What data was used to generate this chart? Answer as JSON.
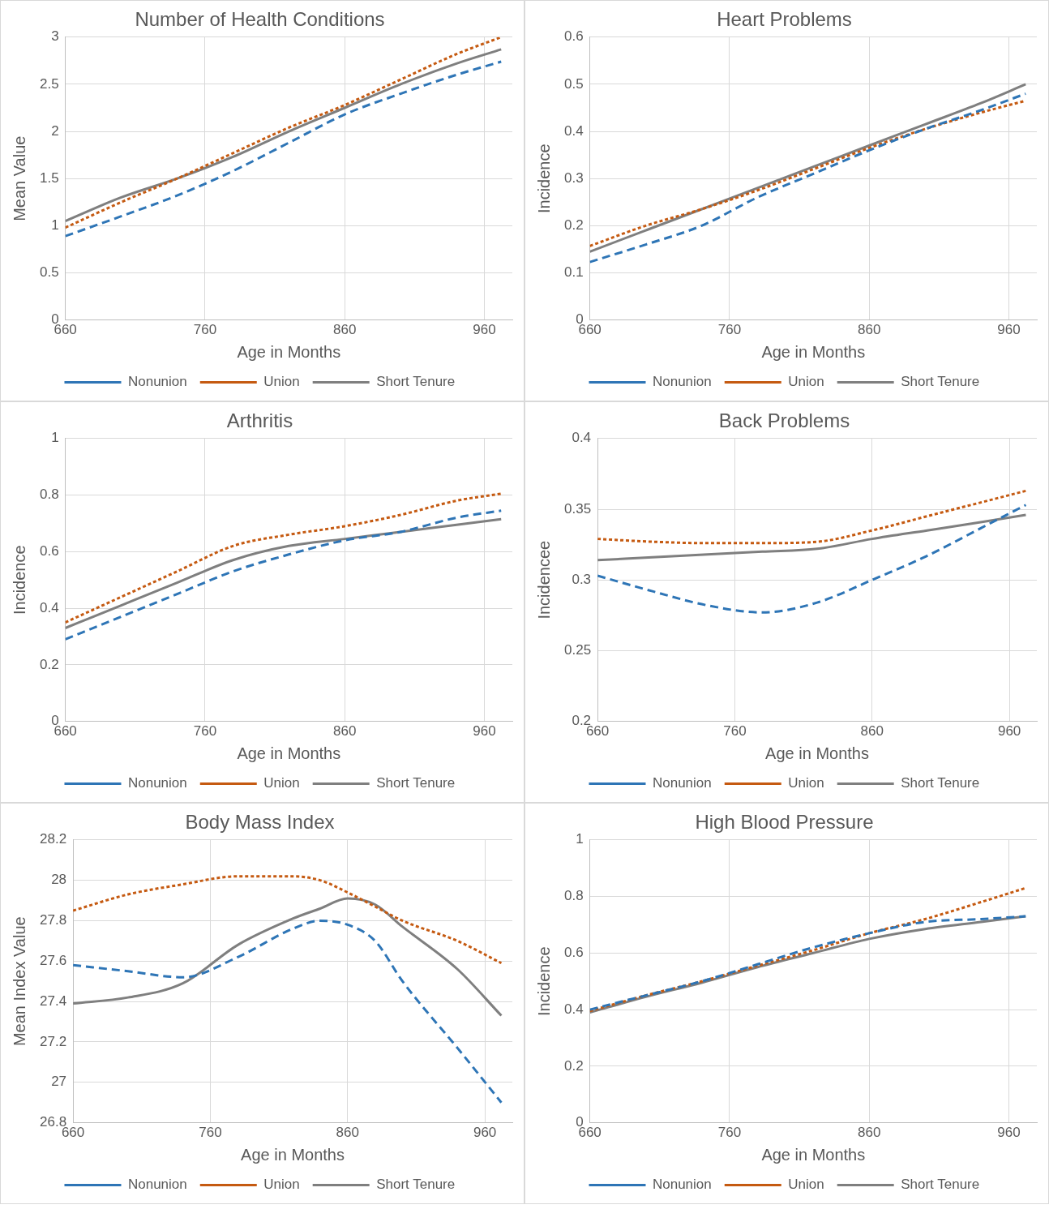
{
  "chart_data": [
    {
      "type": "line",
      "title": "Number of Health Conditions",
      "xlabel": "Age in Months",
      "ylabel": "Mean Value",
      "x": [
        660,
        700,
        740,
        780,
        820,
        860,
        900,
        940,
        972
      ],
      "xlim": [
        660,
        980
      ],
      "xticks": [
        660,
        760,
        860,
        960
      ],
      "ylim": [
        0,
        3
      ],
      "yticks": [
        0,
        0.5,
        1,
        1.5,
        2,
        2.5,
        3
      ],
      "grid": true,
      "legend": "bottom",
      "marker": "none",
      "series": [
        {
          "name": "Nonunion",
          "color": "#2e75b6",
          "line_style": "dashed",
          "values": [
            0.89,
            1.1,
            1.32,
            1.58,
            1.88,
            2.18,
            2.4,
            2.6,
            2.74
          ]
        },
        {
          "name": "Union",
          "color": "#c55a11",
          "line_style": "dotted",
          "values": [
            0.98,
            1.25,
            1.5,
            1.77,
            2.04,
            2.28,
            2.55,
            2.82,
            3.0
          ]
        },
        {
          "name": "Short Tenure",
          "color": "#7f7f7f",
          "line_style": "solid",
          "values": [
            1.05,
            1.3,
            1.5,
            1.73,
            2.0,
            2.25,
            2.5,
            2.72,
            2.87
          ]
        }
      ]
    },
    {
      "type": "line",
      "title": "Heart Problems",
      "xlabel": "Age in Months",
      "ylabel": "Incidence",
      "x": [
        660,
        700,
        740,
        780,
        820,
        860,
        900,
        940,
        972
      ],
      "xlim": [
        660,
        980
      ],
      "xticks": [
        660,
        760,
        860,
        960
      ],
      "ylim": [
        0,
        0.6
      ],
      "yticks": [
        0,
        0.1,
        0.2,
        0.3,
        0.4,
        0.5,
        0.6
      ],
      "grid": true,
      "legend": "bottom",
      "marker": "none",
      "series": [
        {
          "name": "Nonunion",
          "color": "#2e75b6",
          "line_style": "dashed",
          "values": [
            0.123,
            0.16,
            0.2,
            0.26,
            0.31,
            0.36,
            0.405,
            0.445,
            0.48
          ]
        },
        {
          "name": "Union",
          "color": "#c55a11",
          "line_style": "dotted",
          "values": [
            0.157,
            0.2,
            0.235,
            0.275,
            0.32,
            0.365,
            0.405,
            0.44,
            0.465
          ]
        },
        {
          "name": "Short Tenure",
          "color": "#7f7f7f",
          "line_style": "solid",
          "values": [
            0.145,
            0.19,
            0.235,
            0.28,
            0.325,
            0.37,
            0.415,
            0.46,
            0.5
          ]
        }
      ]
    },
    {
      "type": "line",
      "title": "Arthritis",
      "xlabel": "Age in Months",
      "ylabel": "Incidence",
      "x": [
        660,
        700,
        740,
        780,
        820,
        860,
        900,
        940,
        972
      ],
      "xlim": [
        660,
        980
      ],
      "xticks": [
        660,
        760,
        860,
        960
      ],
      "ylim": [
        0,
        1
      ],
      "yticks": [
        0,
        0.2,
        0.4,
        0.6,
        0.8,
        1
      ],
      "grid": true,
      "legend": "bottom",
      "marker": "none",
      "series": [
        {
          "name": "Nonunion",
          "color": "#2e75b6",
          "line_style": "dashed",
          "values": [
            0.29,
            0.37,
            0.45,
            0.53,
            0.59,
            0.64,
            0.67,
            0.72,
            0.745
          ]
        },
        {
          "name": "Union",
          "color": "#c55a11",
          "line_style": "dotted",
          "values": [
            0.35,
            0.44,
            0.53,
            0.62,
            0.66,
            0.69,
            0.73,
            0.78,
            0.805
          ]
        },
        {
          "name": "Short Tenure",
          "color": "#7f7f7f",
          "line_style": "solid",
          "values": [
            0.33,
            0.41,
            0.49,
            0.57,
            0.62,
            0.645,
            0.67,
            0.695,
            0.715
          ]
        }
      ]
    },
    {
      "type": "line",
      "title": "Back Problems",
      "xlabel": "Age in Months",
      "ylabel": "Incidencee",
      "x": [
        660,
        700,
        740,
        780,
        820,
        860,
        900,
        940,
        972
      ],
      "xlim": [
        660,
        980
      ],
      "xticks": [
        660,
        760,
        860,
        960
      ],
      "ylim": [
        0.2,
        0.4
      ],
      "yticks": [
        0.2,
        0.25,
        0.3,
        0.35,
        0.4
      ],
      "grid": true,
      "legend": "bottom",
      "marker": "none",
      "series": [
        {
          "name": "Nonunion",
          "color": "#2e75b6",
          "line_style": "dashed",
          "values": [
            0.303,
            0.292,
            0.282,
            0.277,
            0.284,
            0.3,
            0.317,
            0.337,
            0.353
          ]
        },
        {
          "name": "Union",
          "color": "#c55a11",
          "line_style": "dotted",
          "values": [
            0.329,
            0.327,
            0.326,
            0.326,
            0.327,
            0.335,
            0.345,
            0.355,
            0.363
          ]
        },
        {
          "name": "Short Tenure",
          "color": "#7f7f7f",
          "line_style": "solid",
          "values": [
            0.314,
            0.316,
            0.318,
            0.32,
            0.322,
            0.329,
            0.335,
            0.341,
            0.346
          ]
        }
      ]
    },
    {
      "type": "line",
      "title": "Body Mass Index",
      "xlabel": "Age in Months",
      "ylabel": "Mean Index Value",
      "x": [
        660,
        700,
        740,
        780,
        820,
        840,
        860,
        880,
        900,
        940,
        972
      ],
      "xlim": [
        660,
        980
      ],
      "xticks": [
        660,
        760,
        860,
        960
      ],
      "ylim": [
        26.8,
        28.2
      ],
      "yticks": [
        26.8,
        27,
        27.2,
        27.4,
        27.6,
        27.8,
        28,
        28.2
      ],
      "grid": true,
      "legend": "bottom",
      "marker": "none",
      "series": [
        {
          "name": "Nonunion",
          "color": "#2e75b6",
          "line_style": "dashed",
          "values": [
            27.58,
            27.55,
            27.52,
            27.62,
            27.76,
            27.8,
            27.78,
            27.7,
            27.5,
            27.17,
            26.9
          ]
        },
        {
          "name": "Union",
          "color": "#c55a11",
          "line_style": "dotted",
          "values": [
            27.85,
            27.93,
            27.98,
            28.02,
            28.02,
            28.0,
            27.94,
            27.87,
            27.8,
            27.7,
            27.59
          ]
        },
        {
          "name": "Short Tenure",
          "color": "#7f7f7f",
          "line_style": "solid",
          "values": [
            27.39,
            27.42,
            27.49,
            27.68,
            27.81,
            27.86,
            27.91,
            27.88,
            27.77,
            27.56,
            27.33
          ]
        }
      ]
    },
    {
      "type": "line",
      "title": "High Blood Pressure",
      "xlabel": "Age in Months",
      "ylabel": "Incidence",
      "x": [
        660,
        700,
        740,
        780,
        820,
        860,
        900,
        940,
        972
      ],
      "xlim": [
        660,
        980
      ],
      "xticks": [
        660,
        760,
        860,
        960
      ],
      "ylim": [
        0,
        1
      ],
      "yticks": [
        0,
        0.2,
        0.4,
        0.6,
        0.8,
        1
      ],
      "grid": true,
      "legend": "bottom",
      "marker": "none",
      "series": [
        {
          "name": "Nonunion",
          "color": "#2e75b6",
          "line_style": "dashed",
          "values": [
            0.4,
            0.45,
            0.5,
            0.56,
            0.62,
            0.67,
            0.71,
            0.72,
            0.73
          ]
        },
        {
          "name": "Union",
          "color": "#c55a11",
          "line_style": "dotted",
          "values": [
            0.395,
            0.45,
            0.5,
            0.555,
            0.61,
            0.67,
            0.72,
            0.78,
            0.83
          ]
        },
        {
          "name": "Short Tenure",
          "color": "#7f7f7f",
          "line_style": "solid",
          "values": [
            0.39,
            0.445,
            0.495,
            0.55,
            0.6,
            0.65,
            0.685,
            0.71,
            0.73
          ]
        }
      ]
    }
  ]
}
